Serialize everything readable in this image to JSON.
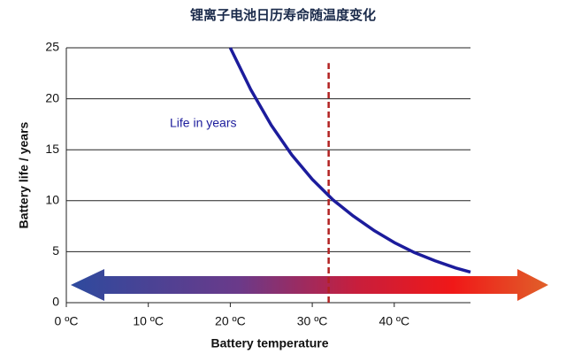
{
  "chart_data": {
    "type": "line",
    "title": "锂离子电池日历寿命随温度变化",
    "x_label": "Battery temperature",
    "y_label": "Battery life / years",
    "xlim": [
      0,
      49.3
    ],
    "ylim": [
      0,
      25
    ],
    "xticks": [
      {
        "value": 0,
        "label": "0 ºC"
      },
      {
        "value": 10,
        "label": "10 ºC"
      },
      {
        "value": 20,
        "label": "20 ºC"
      },
      {
        "value": 30,
        "label": "30 ºC"
      },
      {
        "value": 40,
        "label": "40 ºC"
      }
    ],
    "yticks": [
      0,
      5,
      10,
      15,
      20,
      25
    ],
    "grid": true,
    "series": [
      {
        "name": "Life in years",
        "color": "#1c1c9c",
        "x": [
          20,
          22.5,
          25,
          27.5,
          30,
          32.5,
          35,
          37.5,
          40,
          42.5,
          45,
          47.5,
          49.3
        ],
        "values": [
          25,
          20.9,
          17.4,
          14.5,
          12.1,
          10.1,
          8.5,
          7.1,
          5.9,
          4.9,
          4.1,
          3.4,
          3.0
        ]
      }
    ],
    "reference_line": {
      "x": 32,
      "span": [
        0,
        23.5
      ],
      "color": "#b22222"
    }
  }
}
